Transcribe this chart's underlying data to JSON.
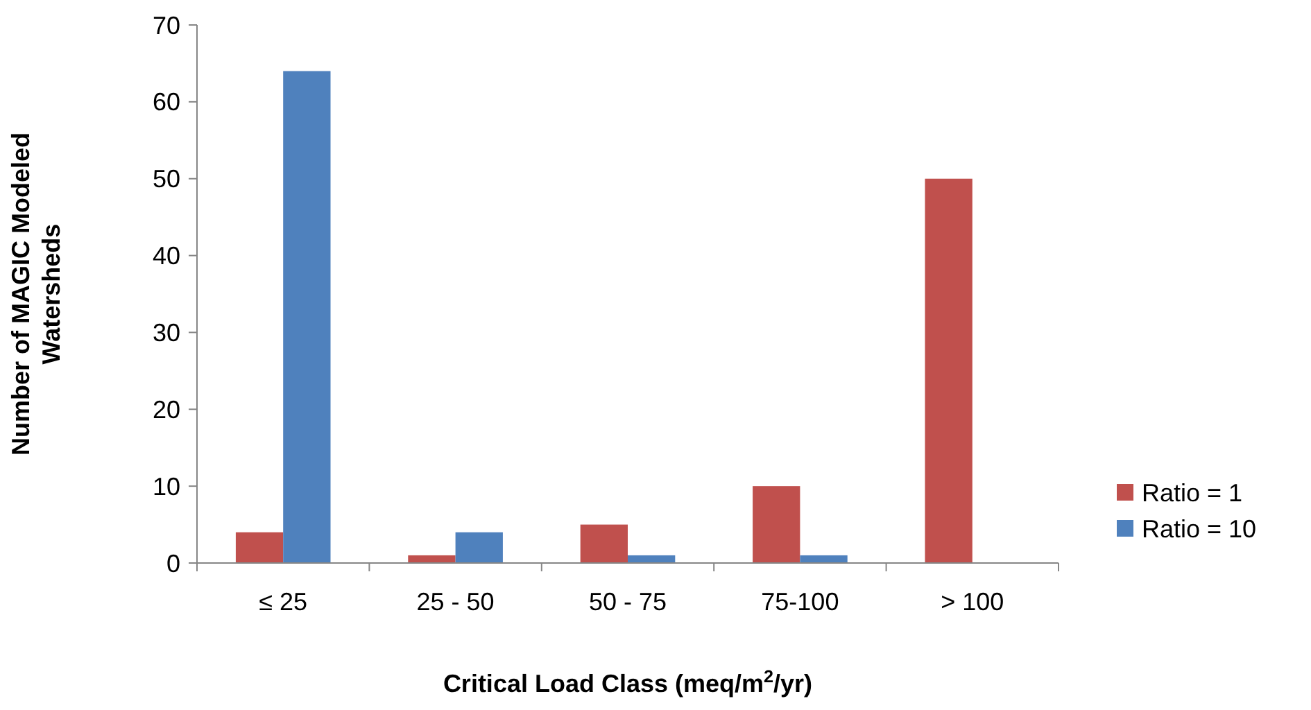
{
  "chart_data": {
    "type": "bar",
    "xlabel": "Critical Load Class (meq/m$^{2}$/yr)",
    "ylabel": "Number of MAGIC Modeled Watersheds",
    "categories": [
      "≤ 25",
      "25 - 50",
      "50 - 75",
      "75-100",
      "> 100"
    ],
    "series": [
      {
        "name": "Ratio = 1",
        "color": "#c0504d",
        "values": [
          4,
          1,
          5,
          10,
          50
        ]
      },
      {
        "name": "Ratio = 10",
        "color": "#4f81bd",
        "values": [
          64,
          4,
          1,
          1,
          0
        ]
      }
    ],
    "ylim": [
      0,
      70
    ],
    "yticks": [
      0,
      10,
      20,
      30,
      40,
      50,
      60,
      70
    ],
    "grid": false,
    "legend": "right"
  }
}
